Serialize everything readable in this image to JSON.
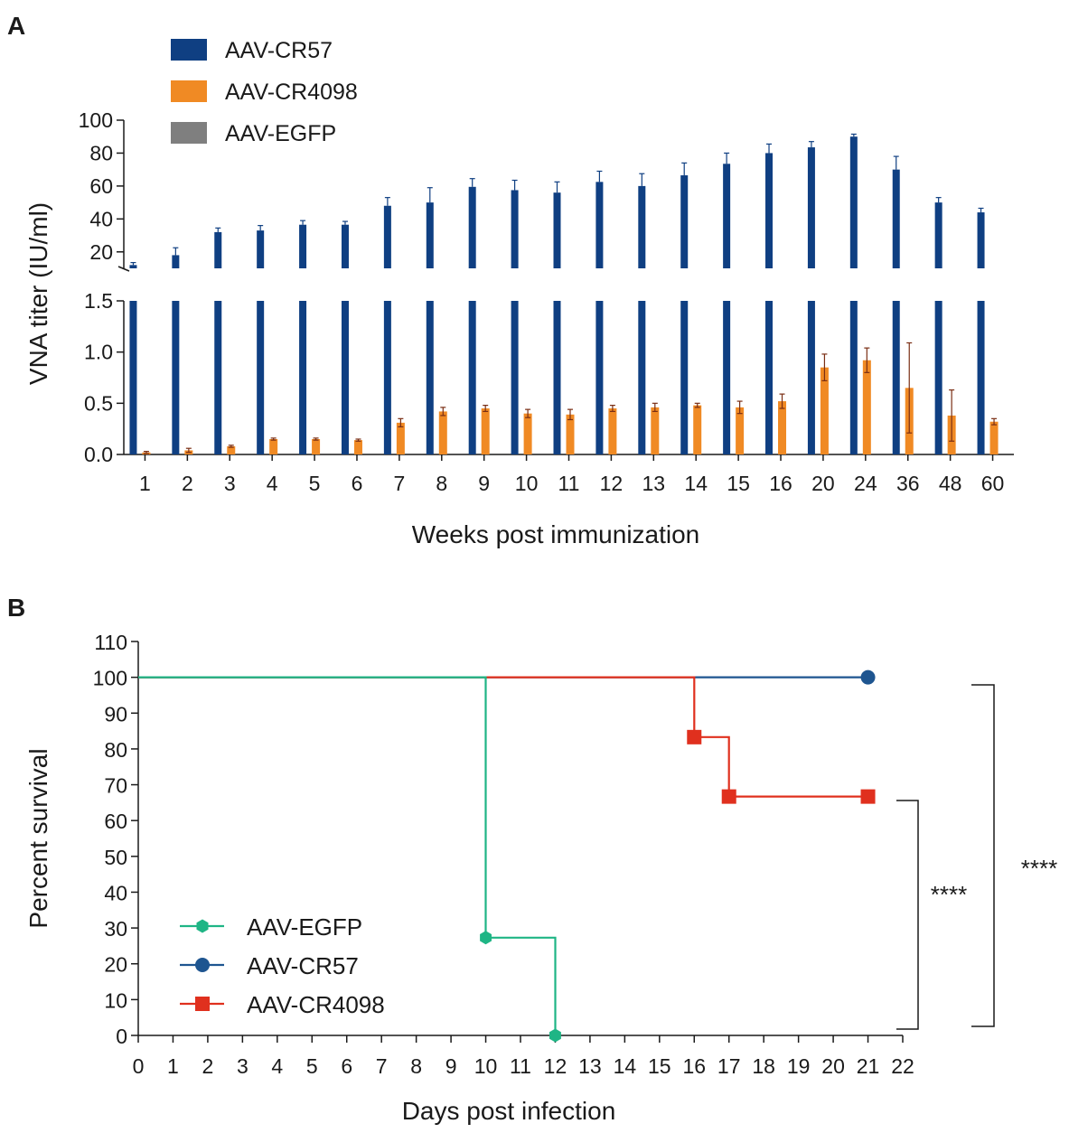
{
  "panel_a_label": "A",
  "panel_b_label": "B",
  "colors": {
    "cr57": "#0f3f82",
    "cr4098": "#f08a24",
    "egfp": "#7f7f7f",
    "egfp_line": "#1fb585",
    "cr57_line": "#1e5590",
    "cr4098_line": "#e0301e",
    "error_bar_b": "#7a2e14",
    "axis": "#1a1a1a"
  },
  "chart_data": [
    {
      "type": "bar",
      "panel": "A",
      "title": "",
      "xlabel": "Weeks post immunization",
      "ylabel": "VNA titer (IU/ml)",
      "categories": [
        "1",
        "2",
        "3",
        "4",
        "5",
        "6",
        "7",
        "8",
        "9",
        "10",
        "11",
        "12",
        "13",
        "14",
        "15",
        "16",
        "20",
        "24",
        "36",
        "48",
        "60"
      ],
      "y_axis_break": true,
      "ylim_lower": [
        0,
        1.5
      ],
      "yticks_lower": [
        "0.0",
        "0.5",
        "1.0",
        "1.5"
      ],
      "ylim_upper": [
        10,
        100
      ],
      "yticks_upper": [
        "20",
        "40",
        "60",
        "80",
        "100"
      ],
      "legend": [
        "AAV-CR57",
        "AAV-CR4098",
        "AAV-EGFP"
      ],
      "legend_position": "top-left",
      "series": [
        {
          "name": "AAV-CR57",
          "values": [
            12,
            18,
            32,
            33,
            36.5,
            36.5,
            48,
            50,
            59.5,
            57.5,
            56,
            62.5,
            60,
            66.5,
            73.5,
            80,
            83.5,
            90,
            70,
            50,
            44
          ],
          "errors": [
            1.5,
            4.5,
            2.5,
            3,
            2.5,
            2,
            5,
            9,
            5,
            6,
            6.5,
            6.5,
            7.5,
            7.5,
            6.5,
            5.5,
            3.5,
            1.5,
            8,
            3,
            2.5
          ]
        },
        {
          "name": "AAV-CR4098",
          "values": [
            0.02,
            0.04,
            0.08,
            0.15,
            0.15,
            0.14,
            0.31,
            0.42,
            0.45,
            0.4,
            0.39,
            0.45,
            0.46,
            0.48,
            0.46,
            0.52,
            0.85,
            0.92,
            0.65,
            0.38,
            0.32
          ],
          "errors": [
            0.01,
            0.02,
            0.01,
            0.01,
            0.01,
            0.01,
            0.04,
            0.04,
            0.03,
            0.04,
            0.05,
            0.03,
            0.04,
            0.02,
            0.06,
            0.07,
            0.13,
            0.12,
            0.44,
            0.25,
            0.03
          ]
        },
        {
          "name": "AAV-EGFP",
          "values": [
            0,
            0,
            0,
            0,
            0,
            0,
            0,
            0,
            0,
            0,
            0,
            0,
            0,
            0,
            0,
            0,
            0,
            0,
            0,
            0,
            0
          ]
        }
      ]
    },
    {
      "type": "line",
      "subtype": "kaplan-meier",
      "panel": "B",
      "title": "",
      "xlabel": "Days post infection",
      "ylabel": "Percent survival",
      "xlim": [
        0,
        22
      ],
      "ylim": [
        0,
        110
      ],
      "xticks": [
        "0",
        "1",
        "2",
        "3",
        "4",
        "5",
        "6",
        "7",
        "8",
        "9",
        "10",
        "11",
        "12",
        "13",
        "14",
        "15",
        "16",
        "17",
        "18",
        "19",
        "20",
        "21",
        "22"
      ],
      "yticks": [
        "0",
        "10",
        "20",
        "30",
        "40",
        "50",
        "60",
        "70",
        "80",
        "90",
        "100",
        "110"
      ],
      "legend": [
        "AAV-EGFP",
        "AAV-CR57",
        "AAV-CR4098"
      ],
      "legend_position": "bottom-left",
      "series": [
        {
          "name": "AAV-EGFP",
          "steps": [
            [
              0,
              100
            ],
            [
              10,
              100
            ],
            [
              10,
              27.3
            ],
            [
              12,
              27.3
            ],
            [
              12,
              0
            ]
          ],
          "markers": [
            [
              10,
              27.3
            ],
            [
              12,
              0
            ]
          ],
          "marker": "hexagon"
        },
        {
          "name": "AAV-CR57",
          "steps": [
            [
              0,
              100
            ],
            [
              21,
              100
            ]
          ],
          "markers": [
            [
              21,
              100
            ]
          ],
          "marker": "circle"
        },
        {
          "name": "AAV-CR4098",
          "steps": [
            [
              0,
              100
            ],
            [
              16,
              100
            ],
            [
              16,
              83.3
            ],
            [
              17,
              83.3
            ],
            [
              17,
              66.7
            ],
            [
              21,
              66.7
            ]
          ],
          "markers": [
            [
              16,
              83.3
            ],
            [
              17,
              66.7
            ],
            [
              21,
              66.7
            ]
          ],
          "marker": "square"
        }
      ],
      "annotations": [
        {
          "text": "****",
          "compares": "AAV-CR4098 vs AAV-EGFP"
        },
        {
          "text": "****",
          "compares": "AAV-CR57 vs AAV-EGFP"
        }
      ]
    }
  ]
}
